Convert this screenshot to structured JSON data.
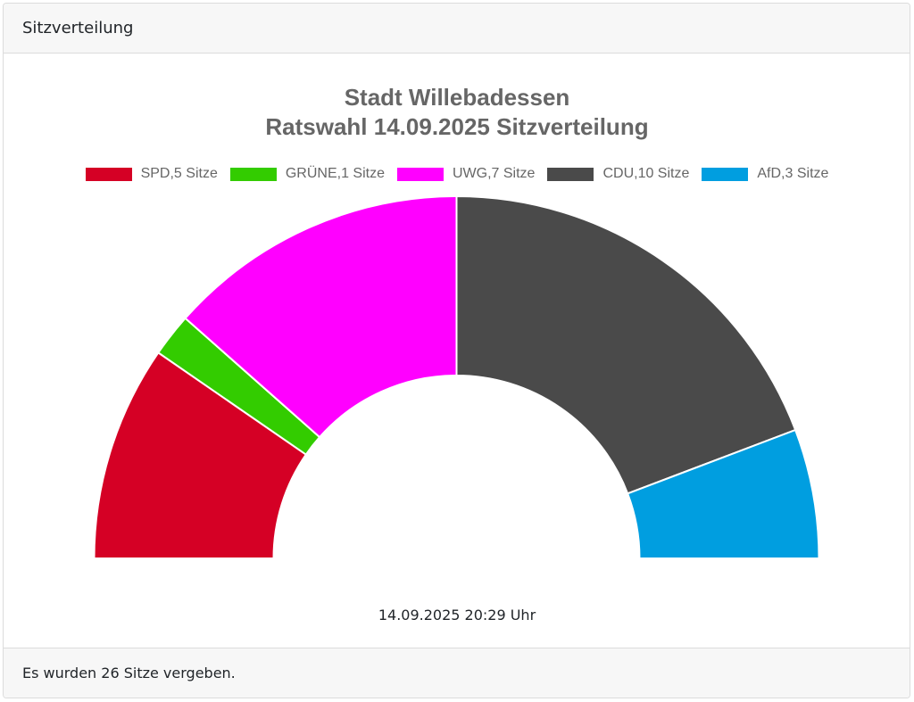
{
  "card": {
    "header": "Sitzverteilung",
    "footer": "Es wurden 26 Sitze vergeben."
  },
  "chart": {
    "title_line1": "Stadt Willebadessen",
    "title_line2": "Ratswahl 14.09.2025 Sitzverteilung",
    "timestamp": "14.09.2025 20:29 Uhr",
    "legend": [
      {
        "label": "SPD,5 Sitze",
        "color": "#d50025"
      },
      {
        "label": "GRÜNE,1 Sitze",
        "color": "#33cc00"
      },
      {
        "label": "UWG,7 Sitze",
        "color": "#ff00ff"
      },
      {
        "label": "CDU,10 Sitze",
        "color": "#4a4a4a"
      },
      {
        "label": "AfD,3 Sitze",
        "color": "#009ee0"
      }
    ]
  },
  "chart_data": {
    "type": "pie",
    "subtype": "half-donut",
    "title": "Stadt Willebadessen Ratswahl 14.09.2025 Sitzverteilung",
    "categories": [
      "SPD",
      "GRÜNE",
      "UWG",
      "CDU",
      "AfD"
    ],
    "values": [
      5,
      1,
      7,
      10,
      3
    ],
    "colors": [
      "#d50025",
      "#33cc00",
      "#ff00ff",
      "#4a4a4a",
      "#009ee0"
    ],
    "total": 26,
    "legend_position": "top",
    "annotation": "14.09.2025 20:29 Uhr"
  }
}
